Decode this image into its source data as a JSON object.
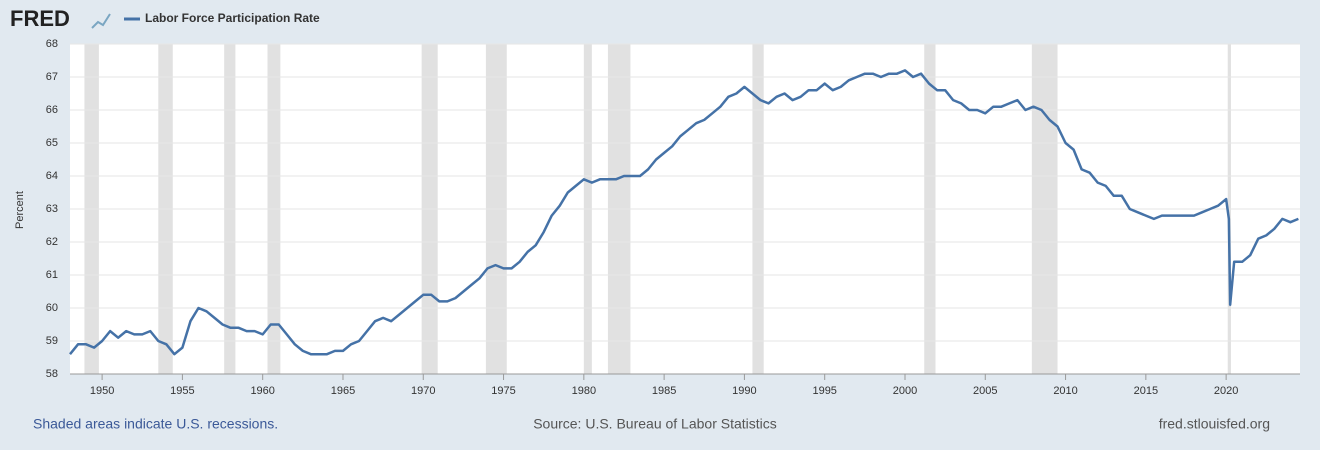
{
  "chart_data": {
    "type": "line",
    "logo": "FRED",
    "ylabel": "Percent",
    "footer_left": "Shaded areas indicate U.S. recessions.",
    "footer_center": "Source: U.S. Bureau of Labor Statistics",
    "footer_right": "fred.stlouisfed.org",
    "xlim": [
      1948,
      2024.6
    ],
    "ylim": [
      58,
      68
    ],
    "xticks": [
      1950,
      1955,
      1960,
      1965,
      1970,
      1975,
      1980,
      1985,
      1990,
      1995,
      2000,
      2005,
      2010,
      2015,
      2020
    ],
    "yticks": [
      58,
      59,
      60,
      61,
      62,
      63,
      64,
      65,
      66,
      67,
      68
    ],
    "grid": true,
    "recessions": [
      [
        1948.9,
        1949.8
      ],
      [
        1953.5,
        1954.4
      ],
      [
        1957.6,
        1958.3
      ],
      [
        1960.3,
        1961.1
      ],
      [
        1969.9,
        1970.9
      ],
      [
        1973.9,
        1975.2
      ],
      [
        1980.0,
        1980.5
      ],
      [
        1981.5,
        1982.9
      ],
      [
        1990.5,
        1991.2
      ],
      [
        2001.2,
        2001.9
      ],
      [
        2007.9,
        2009.5
      ],
      [
        2020.1,
        2020.3
      ]
    ],
    "x": [
      1948.0,
      1948.5,
      1949.0,
      1949.5,
      1950.0,
      1950.5,
      1951.0,
      1951.5,
      1952.0,
      1952.5,
      1953.0,
      1953.5,
      1954.0,
      1954.5,
      1955.0,
      1955.5,
      1956.0,
      1956.5,
      1957.0,
      1957.5,
      1958.0,
      1958.5,
      1959.0,
      1959.5,
      1960.0,
      1960.5,
      1961.0,
      1961.5,
      1962.0,
      1962.5,
      1963.0,
      1963.5,
      1964.0,
      1964.5,
      1965.0,
      1965.5,
      1966.0,
      1966.5,
      1967.0,
      1967.5,
      1968.0,
      1968.5,
      1969.0,
      1969.5,
      1970.0,
      1970.5,
      1971.0,
      1971.5,
      1972.0,
      1972.5,
      1973.0,
      1973.5,
      1974.0,
      1974.5,
      1975.0,
      1975.5,
      1976.0,
      1976.5,
      1977.0,
      1977.5,
      1978.0,
      1978.5,
      1979.0,
      1979.5,
      1980.0,
      1980.5,
      1981.0,
      1981.5,
      1982.0,
      1982.5,
      1983.0,
      1983.5,
      1984.0,
      1984.5,
      1985.0,
      1985.5,
      1986.0,
      1986.5,
      1987.0,
      1987.5,
      1988.0,
      1988.5,
      1989.0,
      1989.5,
      1990.0,
      1990.5,
      1991.0,
      1991.5,
      1992.0,
      1992.5,
      1993.0,
      1993.5,
      1994.0,
      1994.5,
      1995.0,
      1995.5,
      1996.0,
      1996.5,
      1997.0,
      1997.5,
      1998.0,
      1998.5,
      1999.0,
      1999.5,
      2000.0,
      2000.5,
      2001.0,
      2001.5,
      2002.0,
      2002.5,
      2003.0,
      2003.5,
      2004.0,
      2004.5,
      2005.0,
      2005.5,
      2006.0,
      2006.5,
      2007.0,
      2007.5,
      2008.0,
      2008.5,
      2009.0,
      2009.5,
      2010.0,
      2010.5,
      2011.0,
      2011.5,
      2012.0,
      2012.5,
      2013.0,
      2013.5,
      2014.0,
      2014.5,
      2015.0,
      2015.5,
      2016.0,
      2016.5,
      2017.0,
      2017.5,
      2018.0,
      2018.5,
      2019.0,
      2019.5,
      2020.0,
      2020.17,
      2020.25,
      2020.5,
      2021.0,
      2021.5,
      2022.0,
      2022.5,
      2023.0,
      2023.5,
      2024.0,
      2024.5
    ],
    "series": [
      {
        "name": "Labor Force Participation Rate",
        "color": "#4572a7",
        "values": [
          58.6,
          58.9,
          58.9,
          58.8,
          59.0,
          59.3,
          59.1,
          59.3,
          59.2,
          59.2,
          59.3,
          59.0,
          58.9,
          58.6,
          58.8,
          59.6,
          60.0,
          59.9,
          59.7,
          59.5,
          59.4,
          59.4,
          59.3,
          59.3,
          59.2,
          59.5,
          59.5,
          59.2,
          58.9,
          58.7,
          58.6,
          58.6,
          58.6,
          58.7,
          58.7,
          58.9,
          59.0,
          59.3,
          59.6,
          59.7,
          59.6,
          59.8,
          60.0,
          60.2,
          60.4,
          60.4,
          60.2,
          60.2,
          60.3,
          60.5,
          60.7,
          60.9,
          61.2,
          61.3,
          61.2,
          61.2,
          61.4,
          61.7,
          61.9,
          62.3,
          62.8,
          63.1,
          63.5,
          63.7,
          63.9,
          63.8,
          63.9,
          63.9,
          63.9,
          64.0,
          64.0,
          64.0,
          64.2,
          64.5,
          64.7,
          64.9,
          65.2,
          65.4,
          65.6,
          65.7,
          65.9,
          66.1,
          66.4,
          66.5,
          66.7,
          66.5,
          66.3,
          66.2,
          66.4,
          66.5,
          66.3,
          66.4,
          66.6,
          66.6,
          66.8,
          66.6,
          66.7,
          66.9,
          67.0,
          67.1,
          67.1,
          67.0,
          67.1,
          67.1,
          67.2,
          67.0,
          67.1,
          66.8,
          66.6,
          66.6,
          66.3,
          66.2,
          66.0,
          66.0,
          65.9,
          66.1,
          66.1,
          66.2,
          66.3,
          66.0,
          66.1,
          66.0,
          65.7,
          65.5,
          65.0,
          64.8,
          64.2,
          64.1,
          63.8,
          63.7,
          63.4,
          63.4,
          63.0,
          62.9,
          62.8,
          62.7,
          62.8,
          62.8,
          62.8,
          62.8,
          62.8,
          62.9,
          63.0,
          63.1,
          63.3,
          62.7,
          60.1,
          61.4,
          61.4,
          61.6,
          62.1,
          62.2,
          62.4,
          62.7,
          62.6,
          62.7
        ]
      }
    ]
  }
}
